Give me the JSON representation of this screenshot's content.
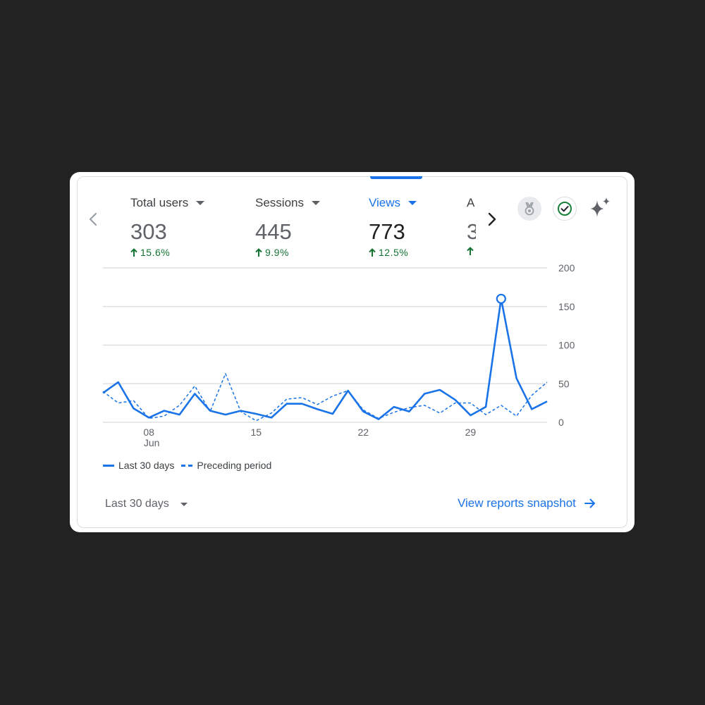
{
  "metrics": [
    {
      "label": "Total users",
      "value": "303",
      "change": "15.6%",
      "active": false
    },
    {
      "label": "Sessions",
      "value": "445",
      "change": "9.9%",
      "active": false
    },
    {
      "label": "Views",
      "value": "773",
      "change": "12.5%",
      "active": true
    },
    {
      "label": "A",
      "value": "3",
      "change": "",
      "active": false
    }
  ],
  "icons": {
    "prev": "chevron-left-icon",
    "next": "chevron-right-icon",
    "medal": "medal-icon",
    "check": "check-circle-icon",
    "spark": "sparkle-icon"
  },
  "colors": {
    "accent": "#1a73e8",
    "positive": "#137333",
    "check": "#188038"
  },
  "chart_data": {
    "type": "line",
    "ylim": [
      0,
      200
    ],
    "y_ticks": [
      "200",
      "150",
      "100",
      "50",
      "0"
    ],
    "x_ticks": [
      {
        "index": 3,
        "label": "08",
        "sub": "Jun"
      },
      {
        "index": 10,
        "label": "15",
        "sub": ""
      },
      {
        "index": 17,
        "label": "22",
        "sub": ""
      },
      {
        "index": 24,
        "label": "29",
        "sub": ""
      }
    ],
    "highlight_index": 26,
    "series": [
      {
        "name": "Last 30 days",
        "style": "solid",
        "values": [
          38,
          52,
          18,
          6,
          15,
          10,
          37,
          15,
          10,
          15,
          11,
          6,
          24,
          24,
          17,
          11,
          41,
          14,
          4,
          20,
          14,
          37,
          42,
          29,
          9,
          20,
          160,
          57,
          17,
          27
        ]
      },
      {
        "name": "Preceding period",
        "style": "dashed",
        "values": [
          40,
          25,
          28,
          5,
          8,
          22,
          47,
          14,
          63,
          14,
          2,
          12,
          30,
          32,
          23,
          34,
          41,
          16,
          5,
          13,
          19,
          22,
          12,
          25,
          25,
          10,
          22,
          8,
          35,
          52
        ]
      }
    ]
  },
  "footer": {
    "date_range": "Last 30 days",
    "link": "View reports snapshot"
  }
}
